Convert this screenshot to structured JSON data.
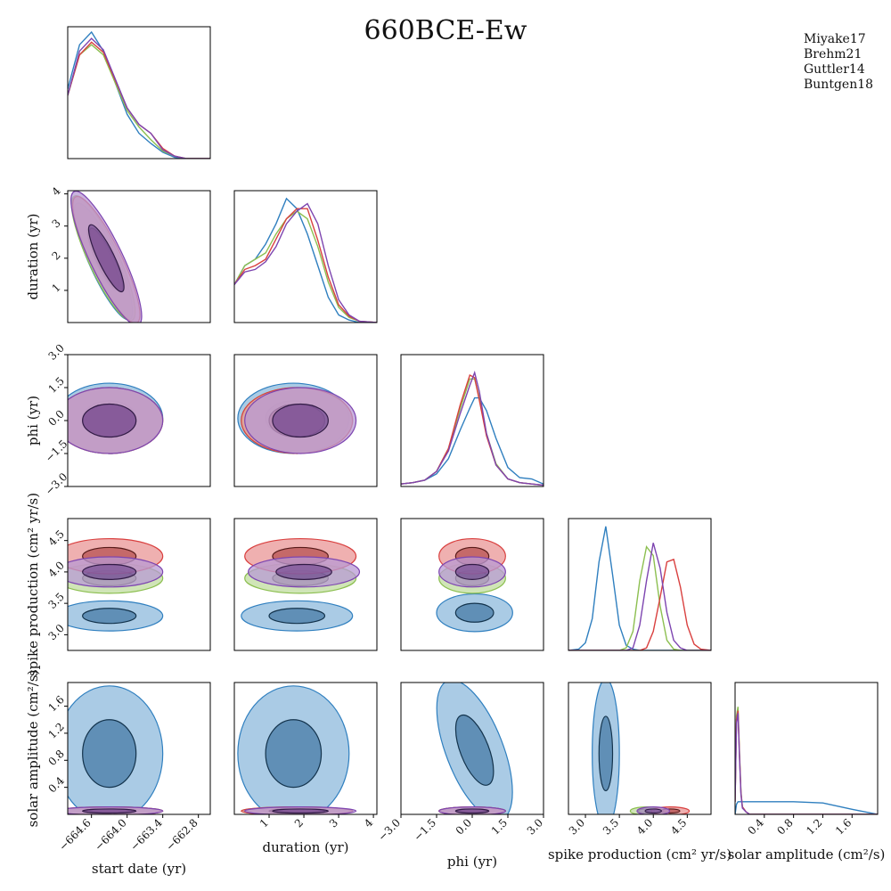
{
  "chart_data": {
    "type": "corner",
    "title": "660BCE-Ew",
    "series": [
      {
        "name": "Miyake17",
        "color": "#2f7fbf"
      },
      {
        "name": "Brehm21",
        "color": "#8cbf50"
      },
      {
        "name": "Guttler14",
        "color": "#d9403f"
      },
      {
        "name": "Buntgen18",
        "color": "#7d45b0"
      }
    ],
    "legend_position": "top-right",
    "parameters": [
      {
        "key": "start",
        "label": "start date (yr)",
        "ticks": [
          "−664.6",
          "−664.0",
          "−663.4",
          "−662.8"
        ],
        "range": [
          -665.0,
          -662.6
        ]
      },
      {
        "key": "duration",
        "label": "duration (yr)",
        "ticks": [
          "1",
          "2",
          "3",
          "4"
        ],
        "range": [
          0.0,
          4.1
        ]
      },
      {
        "key": "phi",
        "label": "phi (yr)",
        "ticks": [
          "−3.0",
          "−1.5",
          "0.0",
          "1.5",
          "3.0"
        ],
        "range": [
          -3.0,
          3.0
        ]
      },
      {
        "key": "spike",
        "label": "spike production (cm² yr/s)",
        "ticks": [
          "3.0",
          "3.5",
          "4.0",
          "4.5"
        ],
        "range": [
          2.75,
          4.85
        ]
      },
      {
        "key": "solar",
        "label": "solar amplitude (cm²/s)",
        "ticks": [
          "0.4",
          "0.8",
          "1.2",
          "1.6"
        ],
        "range": [
          0.0,
          1.95
        ]
      }
    ],
    "marginals": {
      "start": {
        "x": [
          -665.0,
          -664.8,
          -664.6,
          -664.4,
          -664.2,
          -664.0,
          -663.8,
          -663.6,
          -663.4,
          -663.2,
          -663.0,
          -662.6
        ],
        "Miyake17": [
          0.55,
          0.9,
          1.0,
          0.85,
          0.6,
          0.35,
          0.2,
          0.12,
          0.05,
          0.01,
          0.0,
          0.0
        ],
        "Brehm21": [
          0.5,
          0.82,
          0.9,
          0.82,
          0.6,
          0.38,
          0.25,
          0.15,
          0.06,
          0.02,
          0.0,
          0.0
        ],
        "Guttler14": [
          0.5,
          0.82,
          0.92,
          0.84,
          0.62,
          0.4,
          0.27,
          0.2,
          0.08,
          0.02,
          0.0,
          0.0
        ],
        "Buntgen18": [
          0.5,
          0.85,
          0.95,
          0.86,
          0.63,
          0.4,
          0.27,
          0.2,
          0.07,
          0.02,
          0.0,
          0.0
        ]
      },
      "duration": {
        "x": [
          0.0,
          0.3,
          0.6,
          0.9,
          1.2,
          1.5,
          1.8,
          2.1,
          2.4,
          2.7,
          3.0,
          3.3,
          3.6,
          4.1
        ],
        "Miyake17": [
          0.3,
          0.45,
          0.5,
          0.62,
          0.78,
          0.98,
          0.9,
          0.7,
          0.45,
          0.2,
          0.06,
          0.02,
          0.0,
          0.0
        ],
        "Brehm21": [
          0.3,
          0.45,
          0.5,
          0.55,
          0.7,
          0.82,
          0.88,
          0.82,
          0.6,
          0.32,
          0.12,
          0.04,
          0.01,
          0.0
        ],
        "Guttler14": [
          0.3,
          0.42,
          0.45,
          0.5,
          0.66,
          0.82,
          0.9,
          0.9,
          0.65,
          0.36,
          0.14,
          0.05,
          0.01,
          0.0
        ],
        "Buntgen18": [
          0.3,
          0.4,
          0.42,
          0.48,
          0.6,
          0.78,
          0.88,
          0.94,
          0.78,
          0.45,
          0.18,
          0.06,
          0.01,
          0.0
        ]
      },
      "phi": {
        "x": [
          -3.0,
          -2.5,
          -2.0,
          -1.5,
          -1.0,
          -0.5,
          -0.1,
          0.1,
          0.3,
          0.6,
          1.0,
          1.5,
          2.0,
          2.5,
          3.0
        ],
        "Miyake17": [
          0.02,
          0.03,
          0.05,
          0.1,
          0.22,
          0.45,
          0.62,
          0.7,
          0.7,
          0.6,
          0.38,
          0.15,
          0.07,
          0.06,
          0.02
        ],
        "Brehm21": [
          0.02,
          0.03,
          0.05,
          0.12,
          0.3,
          0.62,
          0.85,
          0.85,
          0.7,
          0.42,
          0.18,
          0.06,
          0.03,
          0.02,
          0.01
        ],
        "Guttler14": [
          0.02,
          0.03,
          0.05,
          0.12,
          0.3,
          0.65,
          0.88,
          0.86,
          0.68,
          0.4,
          0.17,
          0.06,
          0.03,
          0.02,
          0.01
        ],
        "Buntgen18": [
          0.02,
          0.03,
          0.05,
          0.12,
          0.28,
          0.58,
          0.8,
          0.9,
          0.75,
          0.42,
          0.17,
          0.06,
          0.03,
          0.02,
          0.01
        ]
      },
      "spike": {
        "x": [
          2.75,
          2.9,
          3.0,
          3.1,
          3.2,
          3.3,
          3.4,
          3.5,
          3.6,
          3.7,
          3.8,
          3.9,
          4.0,
          4.1,
          4.2,
          4.3,
          4.4,
          4.5,
          4.6,
          4.7,
          4.85
        ],
        "Miyake17": [
          0.0,
          0.01,
          0.06,
          0.25,
          0.7,
          0.98,
          0.6,
          0.2,
          0.04,
          0.01,
          0.0,
          0.0,
          0.0,
          0.0,
          0.0,
          0.0,
          0.0,
          0.0,
          0.0,
          0.0,
          0.0
        ],
        "Brehm21": [
          0.0,
          0.0,
          0.0,
          0.0,
          0.0,
          0.0,
          0.0,
          0.0,
          0.02,
          0.15,
          0.55,
          0.82,
          0.75,
          0.35,
          0.08,
          0.01,
          0.0,
          0.0,
          0.0,
          0.0,
          0.0
        ],
        "Guttler14": [
          0.0,
          0.0,
          0.0,
          0.0,
          0.0,
          0.0,
          0.0,
          0.0,
          0.0,
          0.0,
          0.0,
          0.02,
          0.15,
          0.42,
          0.7,
          0.72,
          0.5,
          0.2,
          0.05,
          0.01,
          0.0
        ],
        "Buntgen18": [
          0.0,
          0.0,
          0.0,
          0.0,
          0.0,
          0.0,
          0.0,
          0.0,
          0.0,
          0.02,
          0.2,
          0.55,
          0.85,
          0.65,
          0.3,
          0.08,
          0.02,
          0.0,
          0.0,
          0.0,
          0.0
        ]
      },
      "solar": {
        "x": [
          0.0,
          0.02,
          0.04,
          0.06,
          0.08,
          0.1,
          0.15,
          0.2,
          0.3,
          0.5,
          0.8,
          1.2,
          1.6,
          1.95
        ],
        "Miyake17": [
          0.0,
          0.08,
          0.1,
          0.1,
          0.1,
          0.1,
          0.1,
          0.1,
          0.1,
          0.1,
          0.1,
          0.09,
          0.04,
          0.0
        ],
        "Brehm21": [
          0.1,
          0.78,
          0.85,
          0.5,
          0.18,
          0.06,
          0.02,
          0.0,
          0.0,
          0.0,
          0.0,
          0.0,
          0.0,
          0.0
        ],
        "Guttler14": [
          0.1,
          0.75,
          0.82,
          0.48,
          0.17,
          0.06,
          0.02,
          0.0,
          0.0,
          0.0,
          0.0,
          0.0,
          0.0,
          0.0
        ],
        "Buntgen18": [
          0.1,
          0.72,
          0.8,
          0.46,
          0.16,
          0.05,
          0.02,
          0.0,
          0.0,
          0.0,
          0.0,
          0.0,
          0.0,
          0.0
        ]
      }
    },
    "joint": {
      "duration|start": {
        "Miyake17": {
          "center": [
            -664.4,
            1.9
          ],
          "sigma": [
            0.35,
            0.75
          ],
          "rho": -0.95
        },
        "Brehm21": {
          "center": [
            -664.4,
            2.0
          ],
          "sigma": [
            0.38,
            0.8
          ],
          "rho": -0.95
        },
        "Guttler14": {
          "center": [
            -664.35,
            1.95
          ],
          "sigma": [
            0.4,
            0.8
          ],
          "rho": -0.95
        },
        "Buntgen18": {
          "center": [
            -664.35,
            2.0
          ],
          "sigma": [
            0.42,
            0.85
          ],
          "rho": -0.95
        }
      },
      "phi|start": {
        "Miyake17": {
          "center": [
            -664.3,
            0.1
          ],
          "sigma": [
            0.45,
            0.8
          ],
          "rho": 0.0
        },
        "Brehm21": {
          "center": [
            -664.3,
            0.0
          ],
          "sigma": [
            0.45,
            0.75
          ],
          "rho": 0.0
        },
        "Guttler14": {
          "center": [
            -664.3,
            0.0
          ],
          "sigma": [
            0.45,
            0.75
          ],
          "rho": 0.0
        },
        "Buntgen18": {
          "center": [
            -664.3,
            0.0
          ],
          "sigma": [
            0.45,
            0.75
          ],
          "rho": 0.0
        }
      },
      "phi|duration": {
        "Miyake17": {
          "center": [
            1.7,
            0.1
          ],
          "sigma": [
            0.8,
            0.8
          ],
          "rho": 0.0
        },
        "Brehm21": {
          "center": [
            1.8,
            0.0
          ],
          "sigma": [
            0.8,
            0.75
          ],
          "rho": 0.0
        },
        "Guttler14": {
          "center": [
            1.8,
            0.0
          ],
          "sigma": [
            0.8,
            0.75
          ],
          "rho": 0.0
        },
        "Buntgen18": {
          "center": [
            1.9,
            0.0
          ],
          "sigma": [
            0.8,
            0.75
          ],
          "rho": 0.0
        }
      },
      "spike|start": {
        "Miyake17": {
          "center": [
            -664.3,
            3.3
          ],
          "sigma": [
            0.45,
            0.12
          ],
          "rho": 0.0
        },
        "Brehm21": {
          "center": [
            -664.3,
            3.9
          ],
          "sigma": [
            0.45,
            0.12
          ],
          "rho": 0.0
        },
        "Guttler14": {
          "center": [
            -664.3,
            4.25
          ],
          "sigma": [
            0.45,
            0.14
          ],
          "rho": 0.0
        },
        "Buntgen18": {
          "center": [
            -664.3,
            4.0
          ],
          "sigma": [
            0.45,
            0.12
          ],
          "rho": 0.0
        }
      },
      "spike|duration": {
        "Miyake17": {
          "center": [
            1.8,
            3.3
          ],
          "sigma": [
            0.8,
            0.12
          ],
          "rho": 0.0
        },
        "Brehm21": {
          "center": [
            1.9,
            3.9
          ],
          "sigma": [
            0.8,
            0.12
          ],
          "rho": 0.0
        },
        "Guttler14": {
          "center": [
            1.9,
            4.25
          ],
          "sigma": [
            0.8,
            0.14
          ],
          "rho": 0.0
        },
        "Buntgen18": {
          "center": [
            2.0,
            4.0
          ],
          "sigma": [
            0.8,
            0.12
          ],
          "rho": 0.0
        }
      },
      "spike|phi": {
        "Miyake17": {
          "center": [
            0.1,
            3.35
          ],
          "sigma": [
            0.8,
            0.15
          ],
          "rho": 0.0
        },
        "Brehm21": {
          "center": [
            0.0,
            3.9
          ],
          "sigma": [
            0.7,
            0.12
          ],
          "rho": 0.0
        },
        "Guttler14": {
          "center": [
            0.0,
            4.25
          ],
          "sigma": [
            0.7,
            0.14
          ],
          "rho": 0.0
        },
        "Buntgen18": {
          "center": [
            0.0,
            4.0
          ],
          "sigma": [
            0.7,
            0.12
          ],
          "rho": 0.0
        }
      },
      "solar|start": {
        "Miyake17": {
          "center": [
            -664.3,
            0.9
          ],
          "sigma": [
            0.45,
            0.5
          ],
          "rho": 0.0
        },
        "Brehm21": {
          "center": [
            -664.3,
            0.05
          ],
          "sigma": [
            0.45,
            0.03
          ],
          "rho": 0.0
        },
        "Guttler14": {
          "center": [
            -664.3,
            0.05
          ],
          "sigma": [
            0.45,
            0.03
          ],
          "rho": 0.0
        },
        "Buntgen18": {
          "center": [
            -664.3,
            0.05
          ],
          "sigma": [
            0.45,
            0.03
          ],
          "rho": 0.0
        }
      },
      "solar|duration": {
        "Miyake17": {
          "center": [
            1.7,
            0.9
          ],
          "sigma": [
            0.8,
            0.5
          ],
          "rho": 0.0
        },
        "Brehm21": {
          "center": [
            1.8,
            0.05
          ],
          "sigma": [
            0.8,
            0.03
          ],
          "rho": 0.0
        },
        "Guttler14": {
          "center": [
            1.8,
            0.05
          ],
          "sigma": [
            0.8,
            0.03
          ],
          "rho": 0.0
        },
        "Buntgen18": {
          "center": [
            1.9,
            0.05
          ],
          "sigma": [
            0.8,
            0.03
          ],
          "rho": 0.0
        }
      },
      "solar|phi": {
        "Miyake17": {
          "center": [
            0.1,
            0.95
          ],
          "sigma": [
            0.6,
            0.55
          ],
          "rho": 0.35
        },
        "Brehm21": {
          "center": [
            0.0,
            0.05
          ],
          "sigma": [
            0.7,
            0.03
          ],
          "rho": 0.0
        },
        "Guttler14": {
          "center": [
            0.0,
            0.05
          ],
          "sigma": [
            0.7,
            0.03
          ],
          "rho": 0.0
        },
        "Buntgen18": {
          "center": [
            0.0,
            0.05
          ],
          "sigma": [
            0.7,
            0.03
          ],
          "rho": 0.0
        }
      },
      "solar|spike": {
        "Miyake17": {
          "center": [
            3.3,
            0.9
          ],
          "sigma": [
            0.1,
            0.55
          ],
          "rho": 0.0
        },
        "Brehm21": {
          "center": [
            3.9,
            0.05
          ],
          "sigma": [
            0.12,
            0.03
          ],
          "rho": 0.0
        },
        "Guttler14": {
          "center": [
            4.25,
            0.05
          ],
          "sigma": [
            0.14,
            0.03
          ],
          "rho": 0.0
        },
        "Buntgen18": {
          "center": [
            4.0,
            0.05
          ],
          "sigma": [
            0.12,
            0.03
          ],
          "rho": 0.0
        }
      }
    },
    "grid": false
  }
}
